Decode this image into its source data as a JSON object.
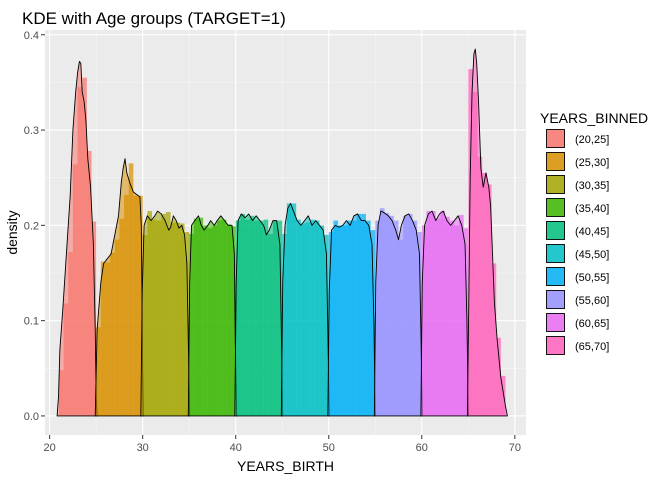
{
  "chart_data": {
    "type": "area",
    "subtype": "kde-with-histogram",
    "title": "KDE with Age groups (TARGET=1)",
    "xlabel": "YEARS_BIRTH",
    "ylabel": "density",
    "xlim": [
      19.5,
      71.2
    ],
    "ylim": [
      -0.02,
      0.405
    ],
    "x_ticks": [
      20,
      30,
      40,
      50,
      60,
      70
    ],
    "y_ticks": [
      0.0,
      0.1,
      0.2,
      0.3,
      0.4
    ],
    "x_tick_labels": [
      "20",
      "30",
      "40",
      "50",
      "60",
      "70"
    ],
    "y_tick_labels": [
      "0.0",
      "0.1",
      "0.2",
      "0.3",
      "0.4"
    ],
    "grid": true,
    "legend_position": "right",
    "legend_title": "YEARS_BINNED",
    "groups": [
      {
        "name": "(20,25]",
        "color": "#F8766D",
        "range": [
          21,
          25
        ],
        "bars": [
          [
            21.0,
            0.048
          ],
          [
            21.5,
            0.118
          ],
          [
            22.0,
            0.172
          ],
          [
            22.5,
            0.264
          ],
          [
            23.0,
            0.345
          ],
          [
            23.5,
            0.355
          ],
          [
            24.0,
            0.278
          ],
          [
            24.5,
            0.204
          ]
        ],
        "kde": [
          [
            20.8,
            0.0
          ],
          [
            20.95,
            0.02
          ],
          [
            21.1,
            0.07
          ],
          [
            21.4,
            0.11
          ],
          [
            21.8,
            0.17
          ],
          [
            22.2,
            0.23
          ],
          [
            22.5,
            0.3
          ],
          [
            22.8,
            0.34
          ],
          [
            23.0,
            0.36
          ],
          [
            23.2,
            0.372
          ],
          [
            23.35,
            0.37
          ],
          [
            23.5,
            0.34
          ],
          [
            23.7,
            0.33
          ],
          [
            23.9,
            0.31
          ],
          [
            24.1,
            0.27
          ],
          [
            24.4,
            0.24
          ],
          [
            24.7,
            0.18
          ],
          [
            24.9,
            0.09
          ],
          [
            25.0,
            0.02
          ],
          [
            25.1,
            0.0
          ]
        ]
      },
      {
        "name": "(25,30]",
        "color": "#D89000",
        "range": [
          25,
          30
        ],
        "bars": [
          [
            25.0,
            0.093
          ],
          [
            25.5,
            0.162
          ],
          [
            26.0,
            0.161
          ],
          [
            26.5,
            0.171
          ],
          [
            27.0,
            0.185
          ],
          [
            27.5,
            0.207
          ],
          [
            28.0,
            0.232
          ],
          [
            28.5,
            0.265
          ],
          [
            29.0,
            0.231
          ],
          [
            29.5,
            0.231
          ]
        ],
        "kde": [
          [
            24.9,
            0.0
          ],
          [
            25.1,
            0.09
          ],
          [
            25.5,
            0.14
          ],
          [
            25.8,
            0.16
          ],
          [
            26.2,
            0.165
          ],
          [
            26.6,
            0.17
          ],
          [
            27.0,
            0.19
          ],
          [
            27.4,
            0.21
          ],
          [
            27.7,
            0.245
          ],
          [
            27.9,
            0.26
          ],
          [
            28.1,
            0.27
          ],
          [
            28.3,
            0.255
          ],
          [
            28.6,
            0.245
          ],
          [
            29.0,
            0.235
          ],
          [
            29.4,
            0.232
          ],
          [
            29.7,
            0.23
          ],
          [
            29.85,
            0.2
          ],
          [
            29.95,
            0.1
          ],
          [
            30.05,
            0.0
          ]
        ]
      },
      {
        "name": "(30,35]",
        "color": "#A3A500",
        "range": [
          30,
          35
        ],
        "bars": [
          [
            30.0,
            0.19
          ],
          [
            30.5,
            0.215
          ],
          [
            31.0,
            0.206
          ],
          [
            31.5,
            0.205
          ],
          [
            32.0,
            0.212
          ],
          [
            32.5,
            0.214
          ],
          [
            33.0,
            0.203
          ],
          [
            33.5,
            0.203
          ],
          [
            34.0,
            0.202
          ],
          [
            34.5,
            0.193
          ]
        ],
        "kde": [
          [
            29.8,
            0.0
          ],
          [
            29.95,
            0.13
          ],
          [
            30.15,
            0.2
          ],
          [
            30.5,
            0.21
          ],
          [
            30.9,
            0.205
          ],
          [
            31.3,
            0.21
          ],
          [
            31.6,
            0.215
          ],
          [
            32.0,
            0.212
          ],
          [
            32.4,
            0.205
          ],
          [
            32.8,
            0.195
          ],
          [
            33.0,
            0.198
          ],
          [
            33.3,
            0.21
          ],
          [
            33.6,
            0.205
          ],
          [
            33.9,
            0.197
          ],
          [
            34.2,
            0.2
          ],
          [
            34.5,
            0.19
          ],
          [
            34.75,
            0.16
          ],
          [
            34.9,
            0.08
          ],
          [
            35.05,
            0.0
          ]
        ]
      },
      {
        "name": "(35,40]",
        "color": "#39B600",
        "range": [
          35,
          40
        ],
        "bars": [
          [
            35.0,
            0.191
          ],
          [
            35.5,
            0.207
          ],
          [
            36.0,
            0.208
          ],
          [
            36.5,
            0.2
          ],
          [
            37.0,
            0.197
          ],
          [
            37.5,
            0.2
          ],
          [
            38.0,
            0.205
          ],
          [
            38.5,
            0.206
          ],
          [
            39.0,
            0.201
          ],
          [
            39.5,
            0.199
          ]
        ],
        "kde": [
          [
            34.9,
            0.0
          ],
          [
            35.05,
            0.14
          ],
          [
            35.25,
            0.2
          ],
          [
            35.6,
            0.205
          ],
          [
            36.0,
            0.21
          ],
          [
            36.3,
            0.2
          ],
          [
            36.6,
            0.195
          ],
          [
            37.0,
            0.2
          ],
          [
            37.3,
            0.205
          ],
          [
            37.7,
            0.2
          ],
          [
            38.0,
            0.205
          ],
          [
            38.4,
            0.21
          ],
          [
            38.8,
            0.205
          ],
          [
            39.2,
            0.2
          ],
          [
            39.6,
            0.2
          ],
          [
            39.85,
            0.17
          ],
          [
            39.95,
            0.08
          ],
          [
            40.1,
            0.0
          ]
        ]
      },
      {
        "name": "(40,45]",
        "color": "#00BF7D",
        "range": [
          40,
          45
        ],
        "bars": [
          [
            40.0,
            0.205
          ],
          [
            40.5,
            0.212
          ],
          [
            41.0,
            0.206
          ],
          [
            41.5,
            0.21
          ],
          [
            42.0,
            0.205
          ],
          [
            42.5,
            0.205
          ],
          [
            43.0,
            0.206
          ],
          [
            43.5,
            0.191
          ],
          [
            44.0,
            0.205
          ],
          [
            44.5,
            0.205
          ]
        ],
        "kde": [
          [
            39.9,
            0.0
          ],
          [
            40.05,
            0.14
          ],
          [
            40.25,
            0.205
          ],
          [
            40.6,
            0.212
          ],
          [
            41.0,
            0.208
          ],
          [
            41.4,
            0.212
          ],
          [
            41.8,
            0.205
          ],
          [
            42.2,
            0.21
          ],
          [
            42.6,
            0.205
          ],
          [
            43.0,
            0.2
          ],
          [
            43.3,
            0.19
          ],
          [
            43.6,
            0.195
          ],
          [
            44.0,
            0.205
          ],
          [
            44.4,
            0.205
          ],
          [
            44.75,
            0.18
          ],
          [
            44.9,
            0.09
          ],
          [
            45.05,
            0.0
          ]
        ]
      },
      {
        "name": "(45,50]",
        "color": "#00BFC4",
        "range": [
          45,
          50
        ],
        "bars": [
          [
            45.0,
            0.191
          ],
          [
            45.5,
            0.223
          ],
          [
            46.0,
            0.223
          ],
          [
            46.5,
            0.206
          ],
          [
            47.0,
            0.202
          ],
          [
            47.5,
            0.203
          ],
          [
            48.0,
            0.206
          ],
          [
            48.5,
            0.205
          ],
          [
            49.0,
            0.2
          ],
          [
            49.5,
            0.19
          ]
        ],
        "kde": [
          [
            44.9,
            0.0
          ],
          [
            45.05,
            0.14
          ],
          [
            45.3,
            0.2
          ],
          [
            45.6,
            0.218
          ],
          [
            45.9,
            0.223
          ],
          [
            46.2,
            0.215
          ],
          [
            46.6,
            0.205
          ],
          [
            47.0,
            0.2
          ],
          [
            47.4,
            0.205
          ],
          [
            47.8,
            0.21
          ],
          [
            48.2,
            0.2
          ],
          [
            48.6,
            0.205
          ],
          [
            49.0,
            0.2
          ],
          [
            49.4,
            0.195
          ],
          [
            49.75,
            0.17
          ],
          [
            49.9,
            0.09
          ],
          [
            50.05,
            0.0
          ]
        ]
      },
      {
        "name": "(50,55]",
        "color": "#00B0F6",
        "range": [
          50,
          55
        ],
        "bars": [
          [
            50.0,
            0.193
          ],
          [
            50.5,
            0.205
          ],
          [
            51.0,
            0.2
          ],
          [
            51.5,
            0.2
          ],
          [
            52.0,
            0.205
          ],
          [
            52.5,
            0.205
          ],
          [
            53.0,
            0.212
          ],
          [
            53.5,
            0.212
          ],
          [
            54.0,
            0.205
          ],
          [
            54.5,
            0.195
          ]
        ],
        "kde": [
          [
            49.9,
            0.0
          ],
          [
            50.05,
            0.13
          ],
          [
            50.3,
            0.195
          ],
          [
            50.7,
            0.2
          ],
          [
            51.1,
            0.198
          ],
          [
            51.5,
            0.2
          ],
          [
            51.9,
            0.205
          ],
          [
            52.3,
            0.2
          ],
          [
            52.7,
            0.21
          ],
          [
            53.1,
            0.212
          ],
          [
            53.5,
            0.205
          ],
          [
            53.9,
            0.205
          ],
          [
            54.3,
            0.2
          ],
          [
            54.65,
            0.18
          ],
          [
            54.85,
            0.1
          ],
          [
            55.0,
            0.0
          ]
        ]
      },
      {
        "name": "(55,60]",
        "color": "#9590FF",
        "range": [
          55,
          60
        ],
        "bars": [
          [
            55.0,
            0.205
          ],
          [
            55.5,
            0.218
          ],
          [
            56.0,
            0.213
          ],
          [
            56.5,
            0.21
          ],
          [
            57.0,
            0.205
          ],
          [
            57.5,
            0.185
          ],
          [
            58.0,
            0.21
          ],
          [
            58.5,
            0.212
          ],
          [
            59.0,
            0.205
          ],
          [
            59.5,
            0.193
          ]
        ],
        "kde": [
          [
            54.9,
            0.0
          ],
          [
            55.05,
            0.14
          ],
          [
            55.3,
            0.2
          ],
          [
            55.6,
            0.215
          ],
          [
            56.0,
            0.213
          ],
          [
            56.4,
            0.21
          ],
          [
            56.8,
            0.205
          ],
          [
            57.2,
            0.195
          ],
          [
            57.5,
            0.185
          ],
          [
            57.8,
            0.2
          ],
          [
            58.2,
            0.21
          ],
          [
            58.6,
            0.212
          ],
          [
            59.0,
            0.205
          ],
          [
            59.4,
            0.195
          ],
          [
            59.75,
            0.17
          ],
          [
            59.9,
            0.09
          ],
          [
            60.05,
            0.0
          ]
        ]
      },
      {
        "name": "(60,65]",
        "color": "#E76BF3",
        "range": [
          60,
          65
        ],
        "bars": [
          [
            60.0,
            0.2
          ],
          [
            60.5,
            0.215
          ],
          [
            61.0,
            0.215
          ],
          [
            61.5,
            0.207
          ],
          [
            62.0,
            0.215
          ],
          [
            62.5,
            0.209
          ],
          [
            63.0,
            0.205
          ],
          [
            63.5,
            0.2
          ],
          [
            64.0,
            0.211
          ],
          [
            64.5,
            0.197
          ]
        ],
        "kde": [
          [
            59.9,
            0.0
          ],
          [
            60.05,
            0.14
          ],
          [
            60.3,
            0.2
          ],
          [
            60.7,
            0.212
          ],
          [
            61.1,
            0.215
          ],
          [
            61.5,
            0.205
          ],
          [
            61.9,
            0.212
          ],
          [
            62.3,
            0.215
          ],
          [
            62.7,
            0.205
          ],
          [
            63.1,
            0.2
          ],
          [
            63.5,
            0.205
          ],
          [
            63.9,
            0.21
          ],
          [
            64.3,
            0.2
          ],
          [
            64.65,
            0.18
          ],
          [
            64.85,
            0.1
          ],
          [
            65.0,
            0.0
          ]
        ]
      },
      {
        "name": "(65,70]",
        "color": "#FF62BC",
        "range": [
          65,
          70
        ],
        "bars": [
          [
            65.0,
            0.364
          ],
          [
            65.5,
            0.34
          ],
          [
            66.0,
            0.272
          ],
          [
            66.5,
            0.255
          ],
          [
            67.0,
            0.243
          ],
          [
            67.5,
            0.16
          ],
          [
            68.0,
            0.082
          ],
          [
            68.5,
            0.042
          ]
        ],
        "kde": [
          [
            64.9,
            0.0
          ],
          [
            65.05,
            0.12
          ],
          [
            65.2,
            0.25
          ],
          [
            65.4,
            0.34
          ],
          [
            65.6,
            0.38
          ],
          [
            65.75,
            0.385
          ],
          [
            65.9,
            0.37
          ],
          [
            66.1,
            0.33
          ],
          [
            66.35,
            0.26
          ],
          [
            66.6,
            0.24
          ],
          [
            66.9,
            0.255
          ],
          [
            67.2,
            0.24
          ],
          [
            67.4,
            0.22
          ],
          [
            67.6,
            0.17
          ],
          [
            67.8,
            0.12
          ],
          [
            68.1,
            0.08
          ],
          [
            68.5,
            0.04
          ],
          [
            69.0,
            0.01
          ],
          [
            69.2,
            0.0
          ]
        ]
      }
    ]
  }
}
